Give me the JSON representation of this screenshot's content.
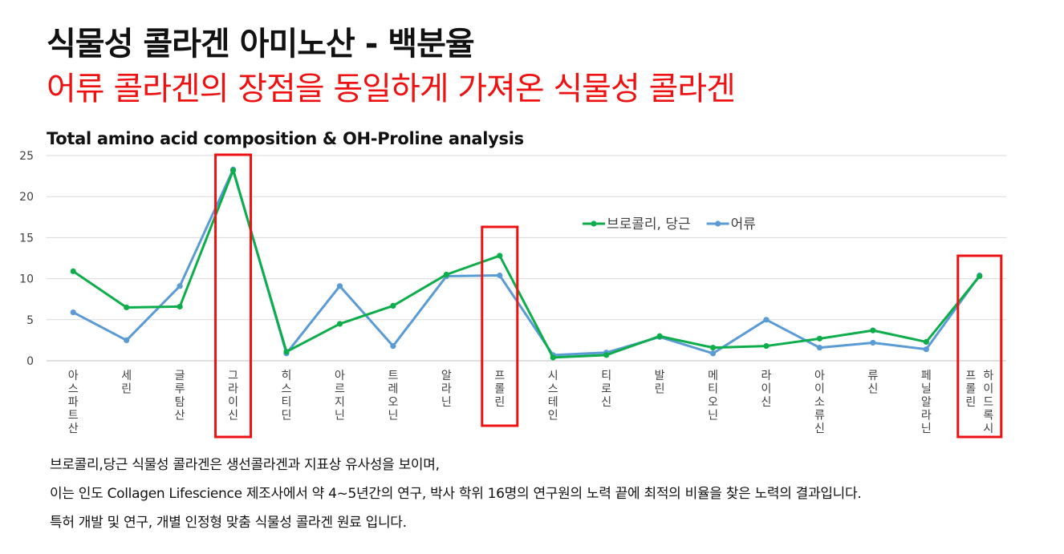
{
  "header": {
    "title": "식물성 콜라겐 아미노산 - 백분율",
    "subtitle": "어류 콜라겐의 장점을 동일하게 가져온 식물성 콜라겐"
  },
  "chart_data": {
    "type": "line",
    "title": "Total amino acid composition & OH-Proline analysis",
    "categories": [
      "아스파트산",
      "세린",
      "글루탐산",
      "그라이신",
      "히스티딘",
      "아르지닌",
      "트레오닌",
      "알라닌",
      "프롤린",
      "시스테인",
      "티로신",
      "발린",
      "메티오닌",
      "라이신",
      "아이소류신",
      "류신",
      "페닐알라닌",
      "하이드록시 프롤린"
    ],
    "series": [
      {
        "name": "브로콜리, 당근",
        "color": "#0ead4b",
        "values": [
          10.9,
          6.5,
          6.6,
          23.2,
          1.1,
          4.5,
          6.7,
          10.5,
          12.8,
          0.4,
          0.7,
          3.0,
          1.6,
          1.8,
          2.7,
          3.7,
          2.3,
          10.3
        ]
      },
      {
        "name": "어류",
        "color": "#5b9bd5",
        "values": [
          5.9,
          2.5,
          9.1,
          23.3,
          0.9,
          9.1,
          1.8,
          10.3,
          10.4,
          0.7,
          1.0,
          2.9,
          0.9,
          5.0,
          1.6,
          2.2,
          1.4,
          10.4
        ]
      }
    ],
    "yticks": [
      0,
      5,
      10,
      15,
      20,
      25
    ],
    "ylim": [
      0,
      25
    ],
    "grid": true,
    "legend": "top-right",
    "highlighted": [
      "그라이신",
      "프롤린",
      "하이드록시 프롤린"
    ],
    "highlight_color": "#ee1111"
  },
  "notes": [
    "브로콜리,당근 식물성 콜라겐은 생선콜라겐과 지표상 유사성을 보이며,",
    "이는 인도 Collagen Lifescience 제조사에서 약 4~5년간의 연구, 박사 학위 16명의 연구원의 노력 끝에 최적의 비율을 찾은 노력의 결과입니다.",
    "특허 개발 및 연구, 개별 인정형 맞춤 식물성 콜라겐 원료 입니다."
  ]
}
